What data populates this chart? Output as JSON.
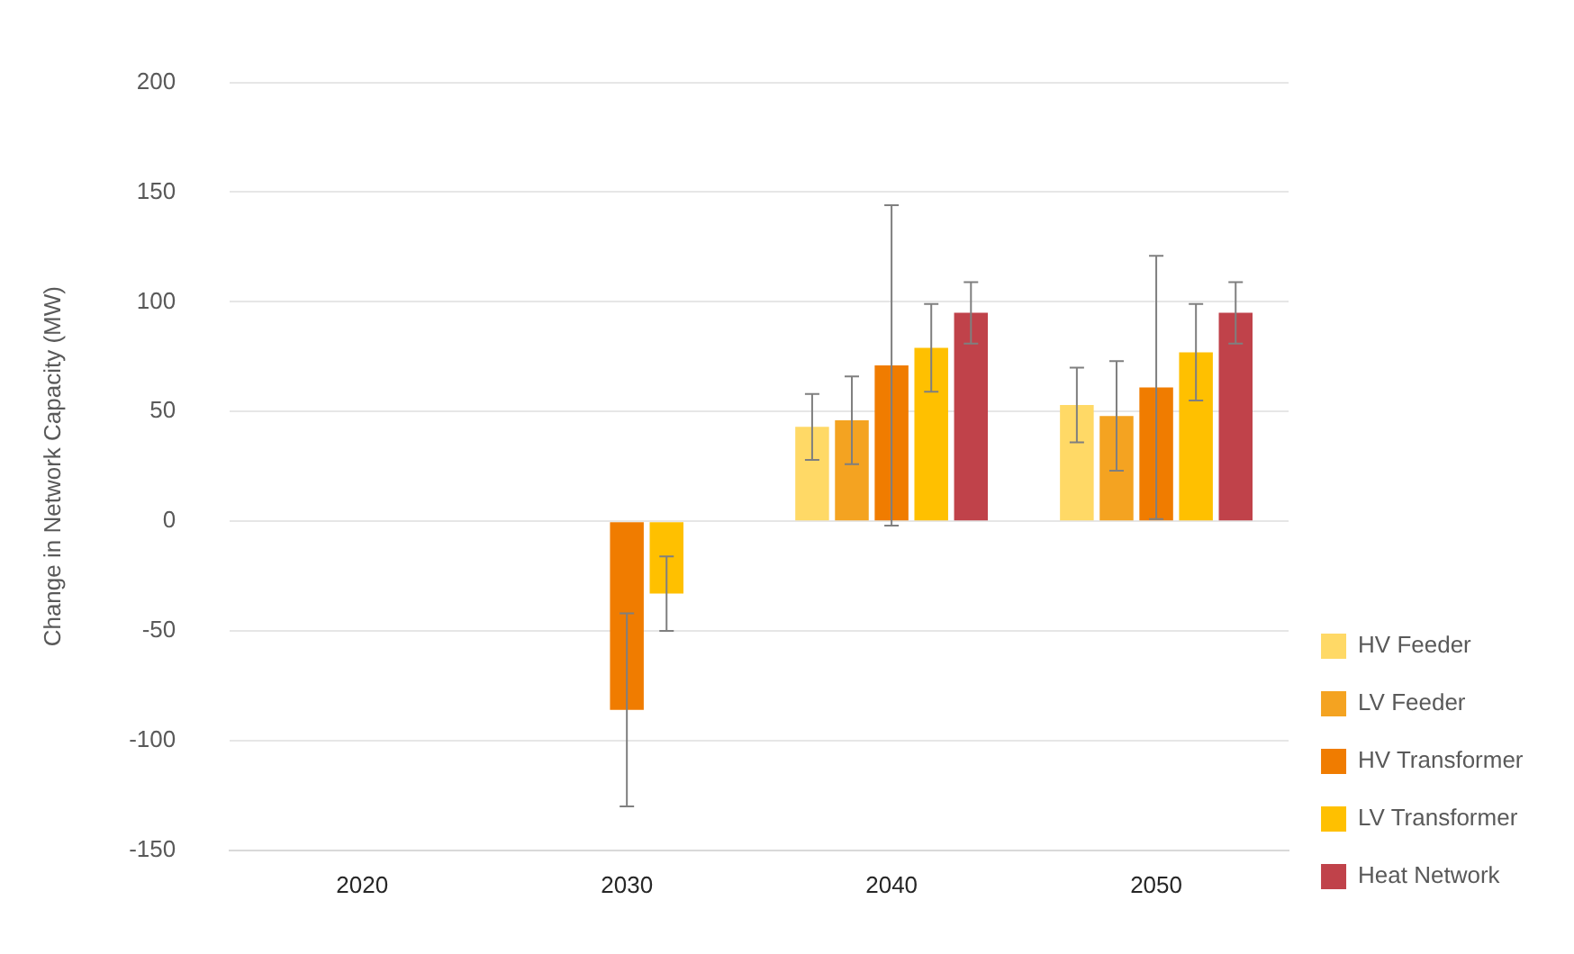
{
  "chart_data": {
    "type": "bar",
    "ylabel": "Change in Network Capacity (MW)",
    "categories": [
      "2020",
      "2030",
      "2040",
      "2050"
    ],
    "series": [
      {
        "name": "HV Feeder",
        "color": "#ffd966",
        "values": [
          null,
          null,
          43,
          53
        ],
        "errors": [
          null,
          null,
          15,
          17
        ]
      },
      {
        "name": "LV Feeder",
        "color": "#f4a321",
        "values": [
          null,
          null,
          46,
          48
        ],
        "errors": [
          null,
          null,
          20,
          25
        ]
      },
      {
        "name": "HV Transformer",
        "color": "#f07c00",
        "values": [
          null,
          -86,
          71,
          61
        ],
        "errors": [
          null,
          44,
          73,
          60
        ]
      },
      {
        "name": "LV Transformer",
        "color": "#ffc000",
        "values": [
          null,
          -33,
          79,
          77
        ],
        "errors": [
          null,
          17,
          20,
          22
        ]
      },
      {
        "name": "Heat Network",
        "color": "#c0424a",
        "values": [
          null,
          null,
          95,
          95
        ],
        "errors": [
          null,
          null,
          14,
          14
        ]
      }
    ],
    "ylim": [
      -150,
      200
    ],
    "yticks": [
      -150,
      -100,
      -50,
      0,
      50,
      100,
      150,
      200
    ],
    "grid": "y",
    "legend": "bottom right"
  }
}
